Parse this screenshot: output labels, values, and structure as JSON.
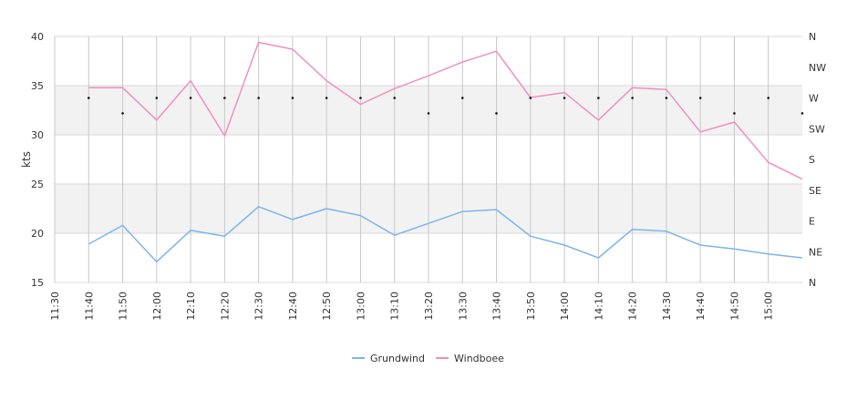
{
  "chart_data": {
    "type": "line",
    "title": "",
    "xlabel": "",
    "ylabel": "kts",
    "ylim": [
      15,
      40
    ],
    "yticks": [
      "15",
      "20",
      "25",
      "30",
      "35",
      "40"
    ],
    "y2_labels": [
      "N",
      "NE",
      "E",
      "SE",
      "S",
      "SW",
      "W",
      "NW",
      "N"
    ],
    "x_ticks": [
      "11:30",
      "11:40",
      "11:50",
      "12:00",
      "12:10",
      "12:20",
      "12:30",
      "12:40",
      "12:50",
      "13:00",
      "13:10",
      "13:20",
      "13:30",
      "13:40",
      "13:50",
      "14:00",
      "14:10",
      "14:20",
      "14:30",
      "14:40",
      "14:50",
      "15:00"
    ],
    "grid": true,
    "legend_position": "bottom",
    "bands": [
      [
        20,
        25
      ],
      [
        30,
        35
      ]
    ],
    "x_minutes": [
      10,
      20,
      30,
      40,
      50,
      60,
      70,
      80,
      90,
      100,
      110,
      120,
      130,
      140,
      150,
      160,
      170,
      180,
      190,
      200,
      210,
      220
    ],
    "series": [
      {
        "name": "Grundwind",
        "color": "#7cb5ec",
        "values": [
          18.9,
          20.8,
          17.1,
          20.3,
          19.7,
          22.7,
          21.4,
          22.5,
          21.8,
          19.8,
          21.0,
          22.2,
          22.4,
          19.7,
          18.8,
          17.5,
          20.4,
          20.2,
          18.8,
          18.4,
          17.9,
          17.5
        ]
      },
      {
        "name": "Windboee",
        "color": "#f08fc0",
        "values": [
          34.8,
          34.8,
          31.5,
          35.5,
          29.9,
          39.4,
          38.7,
          35.5,
          33.1,
          34.7,
          36.0,
          37.4,
          38.5,
          33.8,
          34.3,
          31.5,
          34.8,
          34.6,
          30.3,
          31.3,
          27.2,
          25.5
        ]
      }
    ],
    "direction_markers": [
      {
        "x_min": 10,
        "dir_index": 6
      },
      {
        "x_min": 20,
        "dir_index": 5.5
      },
      {
        "x_min": 30,
        "dir_index": 6
      },
      {
        "x_min": 40,
        "dir_index": 6
      },
      {
        "x_min": 50,
        "dir_index": 6
      },
      {
        "x_min": 60,
        "dir_index": 6
      },
      {
        "x_min": 70,
        "dir_index": 6
      },
      {
        "x_min": 80,
        "dir_index": 6
      },
      {
        "x_min": 90,
        "dir_index": 6
      },
      {
        "x_min": 100,
        "dir_index": 6
      },
      {
        "x_min": 110,
        "dir_index": 5.5
      },
      {
        "x_min": 120,
        "dir_index": 6
      },
      {
        "x_min": 130,
        "dir_index": 5.5
      },
      {
        "x_min": 140,
        "dir_index": 6
      },
      {
        "x_min": 150,
        "dir_index": 6
      },
      {
        "x_min": 160,
        "dir_index": 6
      },
      {
        "x_min": 170,
        "dir_index": 6
      },
      {
        "x_min": 180,
        "dir_index": 6
      },
      {
        "x_min": 190,
        "dir_index": 6
      },
      {
        "x_min": 200,
        "dir_index": 5.5
      },
      {
        "x_min": 210,
        "dir_index": 6
      },
      {
        "x_min": 220,
        "dir_index": 5.5
      }
    ]
  }
}
